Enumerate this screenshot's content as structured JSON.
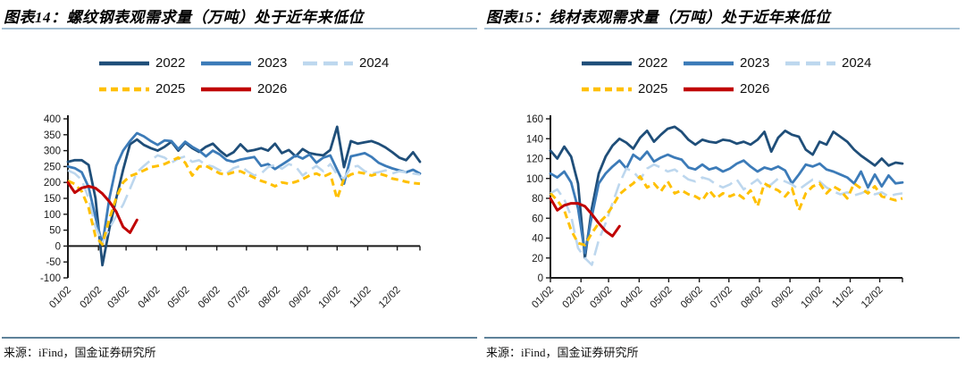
{
  "page": {
    "background": "#ffffff"
  },
  "colors": {
    "axis": "#1a1a1a",
    "title_rule": "#a3bfd3",
    "source_rule": "#5e8299",
    "s2022": "#1f4e79",
    "s2023": "#3c7bb8",
    "s2024": "#bdd7ee",
    "s2025": "#ffc000",
    "s2026": "#c00000"
  },
  "chart_data": [
    {
      "type": "line",
      "title": "图表14：螺纹钢表观需求量（万吨）处于近年来低位",
      "source": "来源：iFind，国金证券研究所",
      "xlabel": "",
      "ylabel": "",
      "ylim": [
        -100,
        400
      ],
      "ytick_step": 50,
      "x_axis_at_y": 0,
      "n_points": 52,
      "grid": false,
      "legend_position": "top",
      "x_tick_labels": [
        "01/02",
        "02/02",
        "03/02",
        "04/02",
        "05/02",
        "06/02",
        "07/02",
        "08/02",
        "09/02",
        "10/02",
        "11/02",
        "12/02"
      ],
      "x_tick_positions": [
        0,
        4.43,
        8.43,
        12.86,
        17.14,
        21.57,
        25.86,
        30.29,
        34.71,
        39.0,
        43.43,
        47.71
      ],
      "series": [
        {
          "name": "2022",
          "color": "#1f4e79",
          "dash": null,
          "width": 2.8,
          "values": [
            265,
            270,
            270,
            255,
            150,
            -60,
            55,
            150,
            240,
            320,
            335,
            318,
            308,
            300,
            312,
            328,
            300,
            325,
            308,
            296,
            312,
            322,
            300,
            283,
            295,
            320,
            298,
            302,
            308,
            300,
            322,
            292,
            302,
            282,
            305,
            292,
            288,
            285,
            302,
            375,
            248,
            330,
            322,
            326,
            330,
            322,
            310,
            295,
            278,
            270,
            295,
            265
          ]
        },
        {
          "name": "2023",
          "color": "#3c7bb8",
          "dash": null,
          "width": 2.8,
          "values": [
            250,
            245,
            232,
            185,
            90,
            5,
            150,
            252,
            300,
            330,
            355,
            345,
            330,
            318,
            332,
            330,
            305,
            328,
            312,
            300,
            282,
            300,
            288,
            270,
            265,
            272,
            276,
            280,
            252,
            258,
            242,
            256,
            270,
            285,
            275,
            288,
            262,
            278,
            285,
            240,
            196,
            282,
            287,
            292,
            280,
            262,
            252,
            244,
            238,
            232,
            240,
            228
          ]
        },
        {
          "name": "2024",
          "color": "#bdd7ee",
          "dash": "16,7",
          "width": 2.6,
          "values": [
            238,
            228,
            208,
            150,
            60,
            10,
            55,
            95,
            130,
            180,
            232,
            252,
            270,
            285,
            278,
            262,
            275,
            282,
            265,
            270,
            255,
            250,
            238,
            228,
            245,
            252,
            235,
            222,
            228,
            248,
            255,
            243,
            258,
            250,
            222,
            238,
            252,
            235,
            258,
            225,
            212,
            248,
            252,
            235,
            228,
            232,
            238,
            228,
            235,
            232,
            228,
            225
          ]
        },
        {
          "name": "2025",
          "color": "#ffc000",
          "dash": "8,5",
          "width": 3,
          "values": [
            205,
            195,
            172,
            120,
            30,
            5,
            85,
            152,
            200,
            220,
            228,
            238,
            248,
            252,
            258,
            268,
            278,
            262,
            222,
            250,
            252,
            240,
            228,
            225,
            232,
            235,
            225,
            215,
            205,
            198,
            188,
            200,
            196,
            202,
            210,
            222,
            228,
            218,
            228,
            148,
            212,
            225,
            232,
            228,
            222,
            228,
            222,
            212,
            208,
            202,
            198,
            196
          ]
        },
        {
          "name": "2026",
          "color": "#c00000",
          "dash": null,
          "width": 3,
          "values": [
            200,
            168,
            183,
            188,
            182,
            165,
            140,
            108,
            60,
            42,
            82
          ]
        }
      ]
    },
    {
      "type": "line",
      "title": "图表15：线材表观需求量（万吨）处于近年来低位",
      "source": "来源：iFind，国金证券研究所",
      "xlabel": "",
      "ylabel": "",
      "ylim": [
        0,
        160
      ],
      "ytick_step": 20,
      "x_axis_at_y": 0,
      "n_points": 52,
      "grid": false,
      "legend_position": "top",
      "x_tick_labels": [
        "01/02",
        "02/02",
        "03/02",
        "04/02",
        "05/02",
        "06/02",
        "07/02",
        "08/02",
        "09/02",
        "10/02",
        "11/02",
        "12/02"
      ],
      "x_tick_positions": [
        0,
        4.43,
        8.43,
        12.86,
        17.14,
        21.57,
        25.86,
        30.29,
        34.71,
        39.0,
        43.43,
        47.71
      ],
      "series": [
        {
          "name": "2022",
          "color": "#1f4e79",
          "dash": null,
          "width": 2.8,
          "values": [
            128,
            120,
            132,
            122,
            95,
            20,
            70,
            105,
            122,
            133,
            140,
            136,
            130,
            141,
            148,
            137,
            144,
            150,
            152,
            147,
            139,
            134,
            139,
            137,
            136,
            139,
            138,
            135,
            137,
            134,
            139,
            147,
            127,
            141,
            148,
            144,
            142,
            129,
            124,
            137,
            134,
            147,
            142,
            137,
            129,
            123,
            118,
            113,
            120,
            113,
            116,
            115
          ]
        },
        {
          "name": "2023",
          "color": "#3c7bb8",
          "dash": null,
          "width": 2.8,
          "values": [
            105,
            101,
            107,
            96,
            70,
            25,
            62,
            95,
            105,
            112,
            118,
            110,
            124,
            119,
            127,
            117,
            121,
            124,
            121,
            119,
            111,
            109,
            114,
            109,
            111,
            107,
            110,
            115,
            118,
            112,
            107,
            111,
            109,
            112,
            108,
            95,
            104,
            114,
            112,
            115,
            109,
            107,
            104,
            101,
            95,
            107,
            91,
            104,
            92,
            103,
            95,
            96
          ]
        },
        {
          "name": "2024",
          "color": "#bdd7ee",
          "dash": "16,7",
          "width": 2.6,
          "values": [
            85,
            89,
            79,
            62,
            30,
            20,
            13,
            38,
            55,
            75,
            95,
            110,
            107,
            99,
            110,
            114,
            111,
            107,
            109,
            104,
            99,
            97,
            101,
            99,
            94,
            91,
            94,
            99,
            89,
            94,
            99,
            91,
            94,
            100,
            97,
            94,
            89,
            94,
            99,
            97,
            91,
            87,
            84,
            86,
            83,
            85,
            88,
            84,
            86,
            82,
            84,
            85
          ]
        },
        {
          "name": "2025",
          "color": "#ffc000",
          "dash": "8,5",
          "width": 3,
          "values": [
            85,
            78,
            68,
            48,
            35,
            33,
            45,
            55,
            62,
            72,
            84,
            90,
            95,
            102,
            91,
            95,
            87,
            97,
            85,
            88,
            84,
            82,
            78,
            88,
            80,
            85,
            82,
            85,
            80,
            88,
            72,
            95,
            91,
            88,
            82,
            90,
            68,
            85,
            92,
            95,
            85,
            92,
            88,
            80,
            95,
            90,
            85,
            92,
            82,
            80,
            78,
            80
          ]
        },
        {
          "name": "2026",
          "color": "#c00000",
          "dash": null,
          "width": 3,
          "values": [
            80,
            68,
            73,
            75,
            75,
            72,
            64,
            55,
            47,
            42,
            52
          ]
        }
      ]
    }
  ]
}
